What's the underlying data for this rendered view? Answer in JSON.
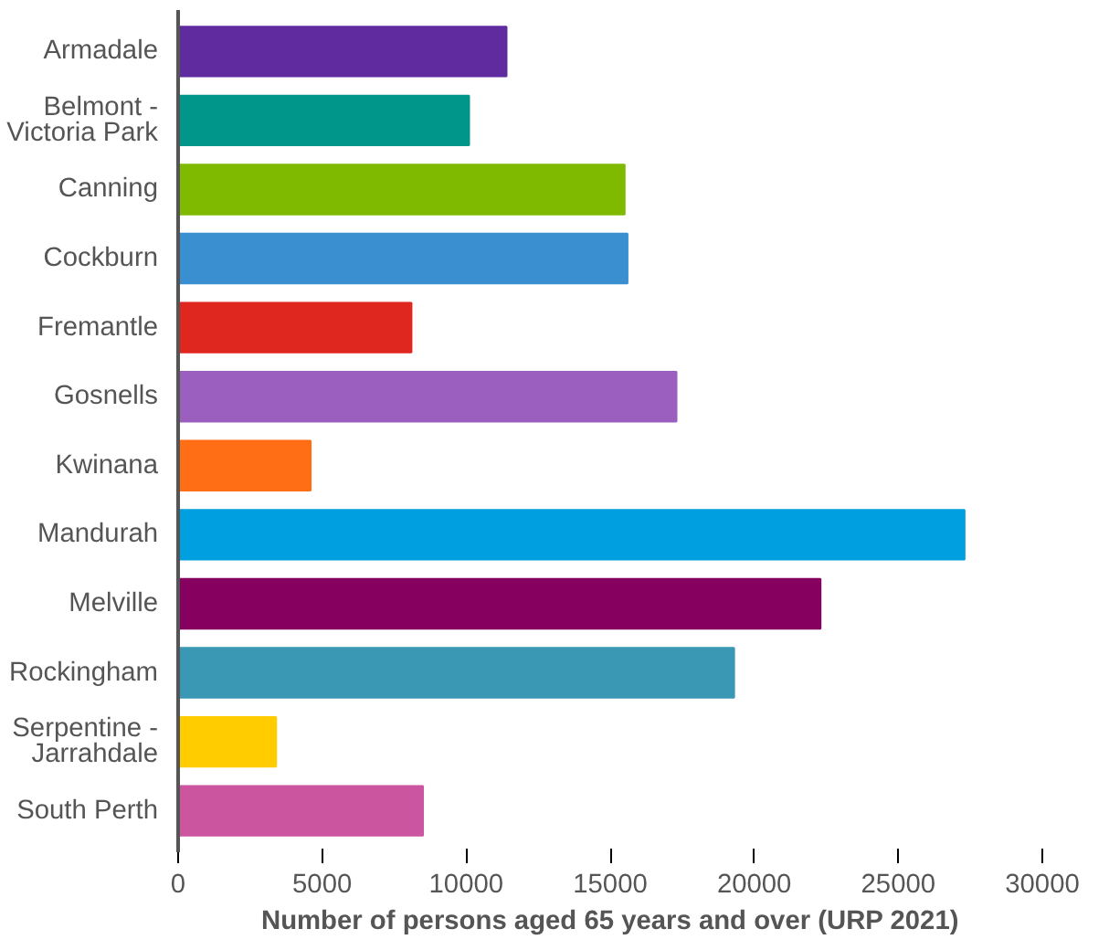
{
  "chart_data": {
    "type": "bar",
    "orientation": "horizontal",
    "xlabel": "Number of persons aged 65 years and over (URP 2021)",
    "categories": [
      "Armadale",
      "Belmont -\nVictoria Park",
      "Canning",
      "Cockburn",
      "Fremantle",
      "Gosnells",
      "Kwinana",
      "Mandurah",
      "Melville",
      "Rockingham",
      "Serpentine -\nJarrahdale",
      "South Perth"
    ],
    "values": [
      11400,
      10100,
      15500,
      15600,
      8100,
      17300,
      4600,
      27300,
      22300,
      19300,
      3400,
      8500
    ],
    "colors": [
      "#5f2b9f",
      "#00968a",
      "#7fba00",
      "#3a8fd1",
      "#e0271f",
      "#9b5fc0",
      "#ff6d14",
      "#00a0e0",
      "#85005f",
      "#3a98b5",
      "#ffcc00",
      "#cc55a0"
    ],
    "xlim": [
      0,
      30000
    ],
    "xticks": [
      0,
      5000,
      10000,
      15000,
      20000,
      25000,
      30000
    ],
    "grid": false
  }
}
